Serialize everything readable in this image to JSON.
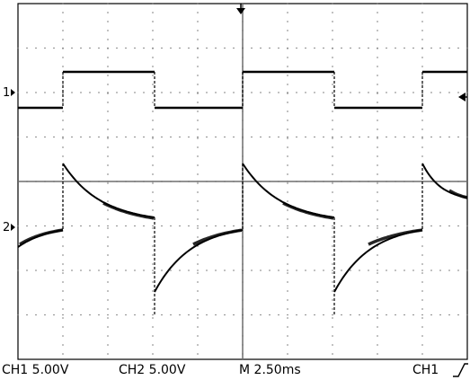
{
  "status_bar": {
    "ch1_label": "CH1",
    "ch1_volts": "5.00V",
    "ch2_label": "CH2",
    "ch2_volts": "5.00V",
    "timebase_label": "M",
    "timebase_value": "2.50ms",
    "trigger_source": "CH1",
    "trigger_slope": "rising-edge-icon"
  },
  "markers": {
    "ch1": "1",
    "ch2": "2"
  },
  "colors": {
    "trace": "#000000",
    "graticule": "#000000",
    "background": "#ffffff"
  }
}
